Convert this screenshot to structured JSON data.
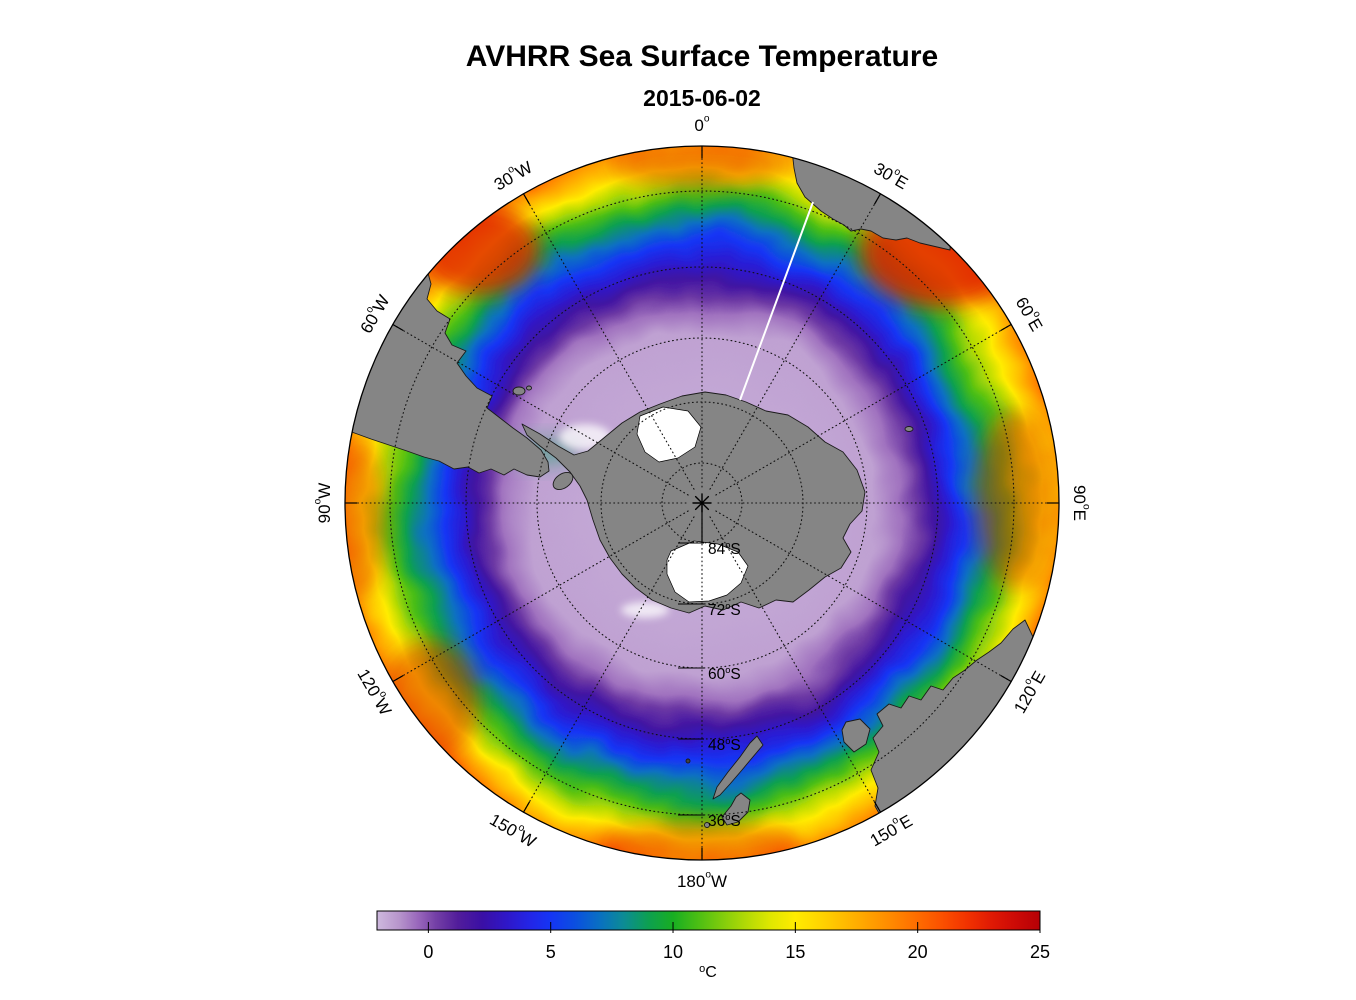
{
  "figure": {
    "title": "AVHRR Sea Surface Temperature",
    "date": "2015-06-02"
  },
  "colors": {
    "background": "#FFFFFF",
    "land": "#858585",
    "land_outline": "#1A1A1A",
    "ice_shelf": "#FFFFFF",
    "graticule": "#111111",
    "rim": "#000000",
    "missing_swath": "#FFFFFF",
    "hot_patch": "#E02000",
    "text": "#000000"
  },
  "chart_data": {
    "type": "heatmap",
    "title": "AVHRR Sea Surface Temperature",
    "subtitle": "2015-06-02",
    "projection": "south polar stereographic, Antarctica centered, outer edge ~30S",
    "colorbar": {
      "unit": "°C",
      "unit_base": "C",
      "unit_sup": "o",
      "orientation": "horizontal",
      "range": [
        -2.1,
        25
      ],
      "ticks": [
        0,
        5,
        10,
        15,
        20,
        25
      ],
      "stops": [
        [
          -2.1,
          "#CEB9DE"
        ],
        [
          -1.2,
          "#B795CC"
        ],
        [
          -0.4,
          "#9866BB"
        ],
        [
          0.3,
          "#7440A6"
        ],
        [
          1.2,
          "#521D9B"
        ],
        [
          2.2,
          "#3A0FA5"
        ],
        [
          3.2,
          "#2F17C8"
        ],
        [
          4.2,
          "#2226E8"
        ],
        [
          5,
          "#1535F5"
        ],
        [
          6,
          "#0B4FE0"
        ],
        [
          7,
          "#0970C2"
        ],
        [
          8,
          "#0C8C94"
        ],
        [
          9,
          "#0DA050"
        ],
        [
          10,
          "#18AE22"
        ],
        [
          11,
          "#4ABE14"
        ],
        [
          12,
          "#80CC0C"
        ],
        [
          13,
          "#B3DA05"
        ],
        [
          14,
          "#E0E700"
        ],
        [
          15,
          "#FFEC00"
        ],
        [
          16,
          "#FFD500"
        ],
        [
          17,
          "#FFBB00"
        ],
        [
          18,
          "#FFA100"
        ],
        [
          19,
          "#FF8700"
        ],
        [
          20,
          "#FF6C00"
        ],
        [
          21,
          "#FB5000"
        ],
        [
          22,
          "#F23300"
        ],
        [
          23,
          "#E01A04"
        ],
        [
          24,
          "#CC0A06"
        ],
        [
          25,
          "#B60006"
        ]
      ]
    },
    "meridians": [
      {
        "az": 0,
        "base": "0",
        "suffix": ""
      },
      {
        "az": 30,
        "base": "30",
        "suffix": "E"
      },
      {
        "az": 60,
        "base": "60",
        "suffix": "E"
      },
      {
        "az": 90,
        "base": "90",
        "suffix": "E"
      },
      {
        "az": 120,
        "base": "120",
        "suffix": "E"
      },
      {
        "az": 150,
        "base": "150",
        "suffix": "E"
      },
      {
        "az": 180,
        "base": "180",
        "suffix": "W"
      },
      {
        "az": 210,
        "base": "150",
        "suffix": "W"
      },
      {
        "az": 240,
        "base": "120",
        "suffix": "W"
      },
      {
        "az": 270,
        "base": "90",
        "suffix": "W"
      },
      {
        "az": 300,
        "base": "60",
        "suffix": "W"
      },
      {
        "az": 330,
        "base": "30",
        "suffix": "W"
      }
    ],
    "parallels": [
      {
        "base": "84",
        "suffix": "S",
        "r": 40
      },
      {
        "base": "72",
        "suffix": "S",
        "r": 101
      },
      {
        "base": "60",
        "suffix": "S",
        "r": 165
      },
      {
        "base": "48",
        "suffix": "S",
        "r": 236
      },
      {
        "base": "36",
        "suffix": "S",
        "r": 312
      }
    ],
    "radial_profile": [
      {
        "r": 0.12,
        "sst_c": -1.8
      },
      {
        "r": 0.45,
        "sst_c": -1.5
      },
      {
        "r": 0.52,
        "sst_c": -0.6
      },
      {
        "r": 0.56,
        "sst_c": 0.5
      },
      {
        "r": 0.6,
        "sst_c": 2.0
      },
      {
        "r": 0.64,
        "sst_c": 3.5
      },
      {
        "r": 0.68,
        "sst_c": 5.0
      },
      {
        "r": 0.72,
        "sst_c": 7.0
      },
      {
        "r": 0.76,
        "sst_c": 9.0
      },
      {
        "r": 0.8,
        "sst_c": 11.0
      },
      {
        "r": 0.84,
        "sst_c": 13.0
      },
      {
        "r": 0.875,
        "sst_c": 15.0
      },
      {
        "r": 0.91,
        "sst_c": 17.0
      },
      {
        "r": 0.945,
        "sst_c": 19.0
      },
      {
        "r": 0.975,
        "sst_c": 21.0
      },
      {
        "r": 1.0,
        "sst_c": 22.5
      }
    ],
    "land_masses": [
      "Antarctica",
      "South America",
      "Falkland Islands",
      "Africa",
      "Australia",
      "Tasmania",
      "New Zealand"
    ]
  }
}
